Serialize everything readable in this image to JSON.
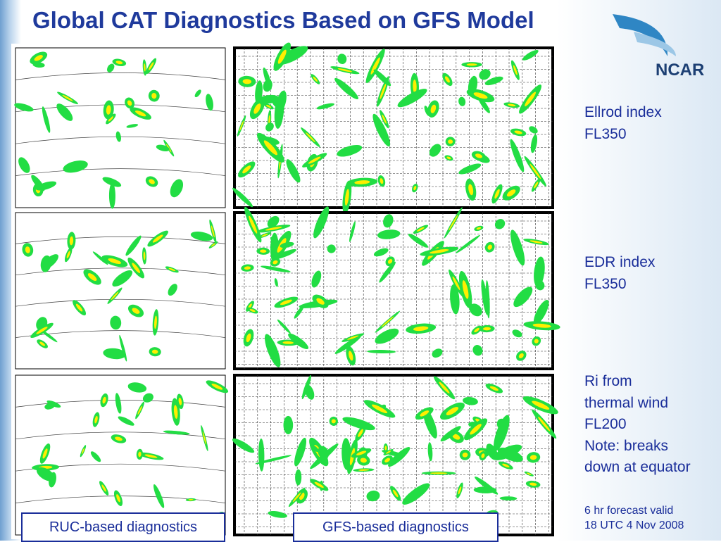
{
  "header": {
    "title": "Global CAT Diagnostics Based on GFS Model",
    "logo": "NCAR"
  },
  "panels": [
    {
      "label": [
        "Ellrod index",
        "FL350"
      ]
    },
    {
      "label": [
        "EDR index",
        "FL350"
      ]
    },
    {
      "label": [
        "Ri from",
        "thermal wind",
        "FL200",
        "Note: breaks",
        "down at equator"
      ]
    }
  ],
  "note": [
    "6 hr forecast valid",
    "18 UTC 4 Nov 2008"
  ],
  "captions": {
    "left": "RUC-based diagnostics",
    "right": "GFS-based diagnostics"
  }
}
